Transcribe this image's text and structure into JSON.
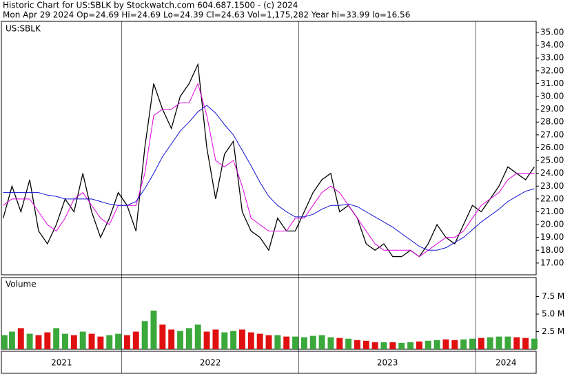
{
  "chart_data": {
    "type": "line",
    "title": "Historic Chart for US:SBLK by Stockwatch.com 604.687.1500 - (c) 2024",
    "subtitle": "Mon Apr 29 2024   Op=24.69  Hi=24.69  Lo=24.39  Cl=24.63  Vol=1,175,282  Year hi=33.99  lo=16.56",
    "symbol_label": "US:SBLK",
    "x": [
      2021.33,
      2021.38,
      2021.43,
      2021.48,
      2021.53,
      2021.58,
      2021.63,
      2021.68,
      2021.73,
      2021.78,
      2021.83,
      2021.88,
      2021.93,
      2021.98,
      2022.03,
      2022.08,
      2022.13,
      2022.18,
      2022.23,
      2022.28,
      2022.33,
      2022.38,
      2022.43,
      2022.48,
      2022.53,
      2022.58,
      2022.63,
      2022.68,
      2022.73,
      2022.78,
      2022.83,
      2022.88,
      2022.93,
      2022.98,
      2023.03,
      2023.08,
      2023.13,
      2023.18,
      2023.23,
      2023.28,
      2023.33,
      2023.38,
      2023.43,
      2023.48,
      2023.53,
      2023.58,
      2023.63,
      2023.68,
      2023.73,
      2023.78,
      2023.83,
      2023.88,
      2023.93,
      2023.98,
      2024.03,
      2024.08,
      2024.13,
      2024.18,
      2024.23,
      2024.28,
      2024.33
    ],
    "xlim": [
      2021.32,
      2024.34
    ],
    "xticks": [
      {
        "value": 2021,
        "label": "2021"
      },
      {
        "value": 2022,
        "label": "2022"
      },
      {
        "value": 2023,
        "label": "2023"
      },
      {
        "value": 2024,
        "label": "2024"
      }
    ],
    "ylim": [
      16.08,
      35.86
    ],
    "yticks": [
      {
        "value": 17,
        "label": "17.00"
      },
      {
        "value": 18,
        "label": "18.00"
      },
      {
        "value": 19,
        "label": "19.00"
      },
      {
        "value": 20,
        "label": "20.00"
      },
      {
        "value": 21,
        "label": "21.00"
      },
      {
        "value": 22,
        "label": "22.00"
      },
      {
        "value": 23,
        "label": "23.00"
      },
      {
        "value": 24,
        "label": "24.00"
      },
      {
        "value": 25,
        "label": "25.00"
      },
      {
        "value": 26,
        "label": "26.00"
      },
      {
        "value": 27,
        "label": "27.00"
      },
      {
        "value": 28,
        "label": "28.00"
      },
      {
        "value": 29,
        "label": "29.00"
      },
      {
        "value": 30,
        "label": "30.00"
      },
      {
        "value": 31,
        "label": "31.00"
      },
      {
        "value": 32,
        "label": "32.00"
      },
      {
        "value": 33,
        "label": "33.00"
      },
      {
        "value": 34,
        "label": "34.00"
      },
      {
        "value": 35,
        "label": "35.00"
      }
    ],
    "grid": false,
    "series": [
      {
        "color": "#000000",
        "values": [
          20.5,
          23,
          21,
          23.5,
          19.5,
          18.5,
          20,
          22,
          21,
          24,
          21,
          19,
          20.5,
          22.5,
          21.5,
          19.5,
          26,
          31,
          29,
          27.5,
          30,
          31,
          32.5,
          26,
          22,
          25.5,
          26.5,
          21,
          19.5,
          19,
          18,
          20.5,
          19.5,
          19.5,
          21,
          22.5,
          23.5,
          24,
          21,
          21.5,
          20.5,
          18.5,
          18,
          18.5,
          17.5,
          17.5,
          18,
          17.5,
          18.5,
          20,
          19,
          18.5,
          20,
          21.5,
          21,
          22,
          23,
          24.5,
          24,
          23.5,
          24.5
        ]
      },
      {
        "color": "#e000e0",
        "values": [
          21.5,
          22,
          22,
          22,
          21,
          20,
          19.5,
          20.5,
          22,
          22.5,
          21.5,
          20.5,
          20,
          21.5,
          21.5,
          21.5,
          24,
          28.5,
          29,
          29,
          29.5,
          29.5,
          31,
          28.5,
          25,
          24.5,
          25,
          23,
          20.5,
          20,
          19.5,
          19.5,
          19.5,
          20.5,
          20.5,
          21.5,
          22.5,
          23,
          22.5,
          21.5,
          20.5,
          19.5,
          18.5,
          18,
          18,
          18,
          18,
          17.5,
          18,
          18.5,
          19,
          19,
          19.5,
          20.5,
          21.5,
          22,
          22.5,
          23.5,
          24,
          24,
          24
        ]
      },
      {
        "color": "#1010d0",
        "values": [
          22.5,
          22.5,
          22.5,
          22.5,
          22.5,
          22.3,
          22.2,
          22,
          22,
          22,
          22,
          21.8,
          21.6,
          21.5,
          21.5,
          21.8,
          22.8,
          24,
          25.3,
          26.3,
          27.3,
          28,
          28.8,
          29.3,
          28.7,
          27.8,
          27,
          25.8,
          24.6,
          23.3,
          22.2,
          21.5,
          21,
          20.6,
          20.6,
          20.8,
          21.2,
          21.5,
          21.5,
          21.6,
          21.4,
          21,
          20.6,
          20.2,
          19.8,
          19.3,
          18.8,
          18.3,
          18,
          18,
          18.2,
          18.6,
          19,
          19.6,
          20.2,
          20.7,
          21.2,
          21.8,
          22.2,
          22.6,
          22.8
        ]
      }
    ],
    "volume": {
      "label": "Volume",
      "up_color": "#3aa83a",
      "down_color": "#e01010",
      "ylim": [
        0,
        10.2
      ],
      "yticks": [
        {
          "value": 2.5,
          "label": "2.5 M"
        },
        {
          "value": 5,
          "label": "5.0 M"
        },
        {
          "value": 7.5,
          "label": "7.5 M"
        }
      ],
      "values": [
        2.0,
        2.5,
        3.0,
        2.2,
        2.0,
        2.4,
        3.0,
        2.2,
        2.0,
        2.5,
        2.2,
        1.8,
        2.0,
        2.2,
        2.0,
        2.5,
        4.0,
        5.5,
        3.5,
        2.8,
        2.6,
        3.0,
        3.5,
        2.5,
        2.8,
        2.4,
        2.6,
        2.8,
        2.4,
        2.2,
        2.0,
        2.0,
        1.8,
        1.8,
        1.7,
        1.9,
        2.0,
        1.7,
        1.6,
        1.5,
        1.3,
        1.2,
        1.0,
        1.0,
        1.0,
        0.9,
        1.0,
        1.1,
        1.2,
        1.3,
        1.4,
        1.3,
        1.4,
        1.5,
        1.6,
        1.7,
        1.8,
        1.8,
        1.7,
        1.6,
        1.5
      ]
    }
  }
}
